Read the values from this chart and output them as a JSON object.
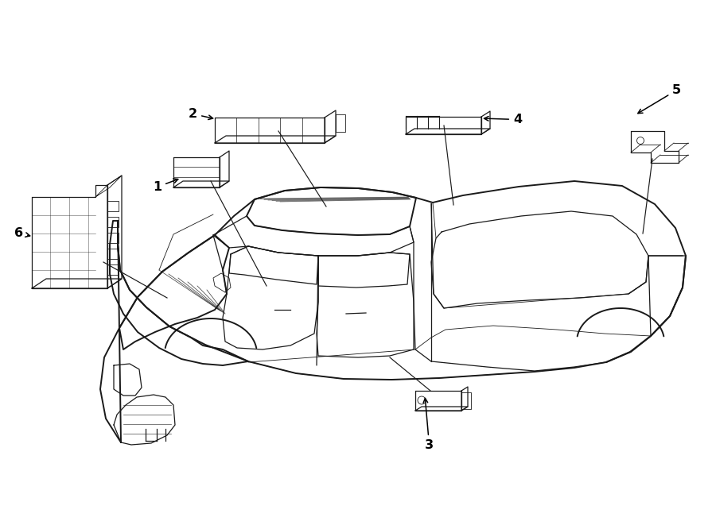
{
  "background_color": "#ffffff",
  "line_color": "#1a1a1a",
  "fig_width": 9.0,
  "fig_height": 6.61,
  "dpi": 100,
  "lw_main": 1.4,
  "lw_thin": 0.9,
  "lw_detail": 0.6
}
